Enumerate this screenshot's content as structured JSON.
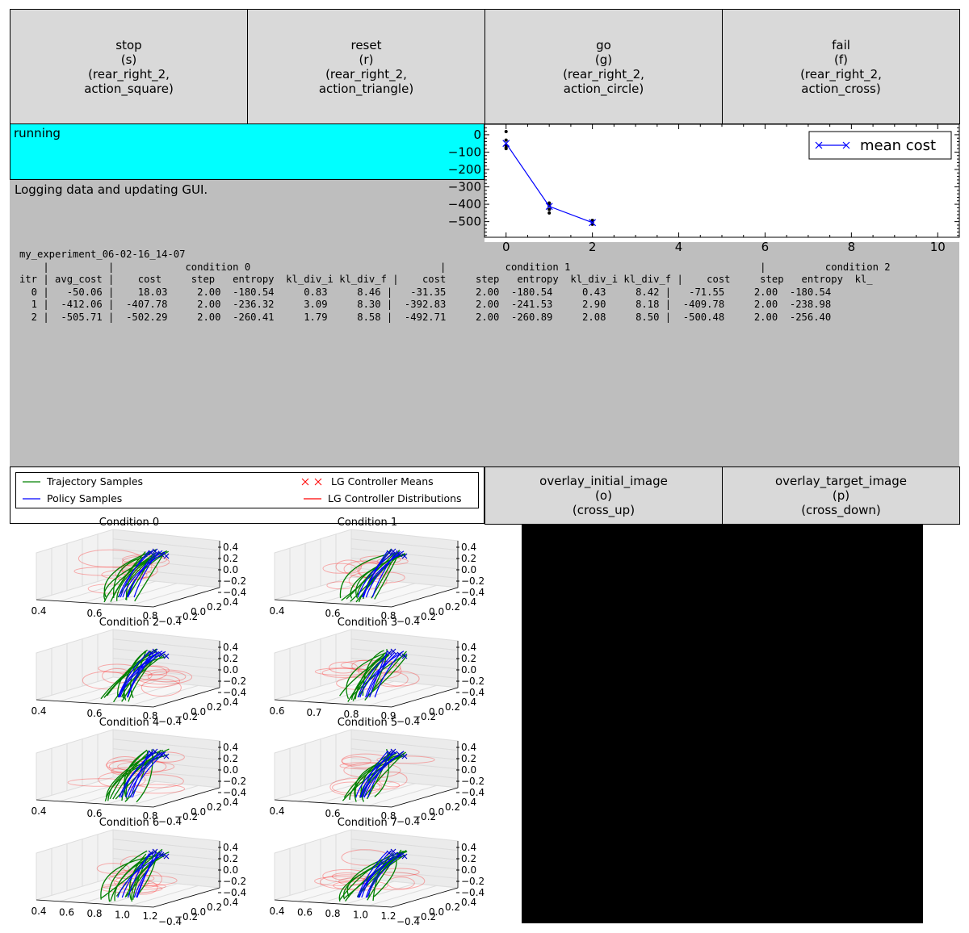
{
  "buttons": [
    {
      "name": "stop-button",
      "lines": [
        "stop",
        "(s)",
        "(rear_right_2,",
        "action_square)"
      ]
    },
    {
      "name": "reset-button",
      "lines": [
        "reset",
        "(r)",
        "(rear_right_2,",
        "action_triangle)"
      ]
    },
    {
      "name": "go-button",
      "lines": [
        "go",
        "(g)",
        "(rear_right_2,",
        "action_circle)"
      ]
    },
    {
      "name": "fail-button",
      "lines": [
        "fail",
        "(f)",
        "(rear_right_2,",
        "action_cross)"
      ]
    }
  ],
  "status": {
    "text": "running",
    "color": "#00ffff"
  },
  "info": {
    "text": "Logging data and updating GUI."
  },
  "log": {
    "lines": [
      "my_experiment_06-02-16_14-07",
      "    |          |            condition 0                                |          condition 1                                |          condition 2",
      "itr | avg_cost |    cost     step   entropy  kl_div_i kl_div_f |    cost     step   entropy  kl_div_i kl_div_f |    cost     step   entropy  kl_",
      "  0 |   -50.06 |    18.03     2.00  -180.54     0.83     8.46 |   -31.35     2.00  -180.54     0.43     8.42 |   -71.55     2.00  -180.54",
      "  1 |  -412.06 |  -407.78     2.00  -236.32     3.09     8.30 |  -392.83     2.00  -241.53     2.90     8.18 |  -409.78     2.00  -238.98",
      "  2 |  -505.71 |  -502.29     2.00  -260.41     1.79     8.58 |  -492.71     2.00  -260.89     2.08     8.50 |  -500.48     2.00  -256.40"
    ]
  },
  "chart_data": {
    "type": "line",
    "legend": "mean cost",
    "legend_position": "top-right",
    "x": [
      0,
      1,
      2
    ],
    "y": [
      -50.06,
      -412.06,
      -505.71
    ],
    "sample_points": [
      [
        0,
        18.03
      ],
      [
        0,
        -31.35
      ],
      [
        0,
        -71.55
      ],
      [
        0,
        -60
      ],
      [
        0,
        -80
      ],
      [
        1,
        -392.83
      ],
      [
        1,
        -407.78
      ],
      [
        1,
        -409.78
      ],
      [
        1,
        -430
      ],
      [
        1,
        -450
      ],
      [
        2,
        -492.71
      ],
      [
        2,
        -502.29
      ],
      [
        2,
        -500.48
      ],
      [
        2,
        -515
      ]
    ],
    "xlim": [
      -0.5,
      10.5
    ],
    "ylim": [
      -590,
      60
    ],
    "xticks": [
      "0",
      "2",
      "4",
      "6",
      "8",
      "10"
    ],
    "yticks": [
      "0",
      "−100",
      "−200",
      "−300",
      "−400",
      "−500"
    ],
    "line_color": "#0000ff"
  },
  "legend": {
    "items": [
      {
        "label": "Trajectory Samples",
        "color": "#008000",
        "kind": "line"
      },
      {
        "label": "Policy Samples",
        "color": "#0000ff",
        "kind": "line"
      },
      {
        "label": "LG Controller Means",
        "color": "#ff0000",
        "kind": "x"
      },
      {
        "label": "LG Controller Distributions",
        "color": "#ff0000",
        "kind": "line"
      }
    ]
  },
  "overlay_buttons": [
    {
      "name": "overlay-initial-image-button",
      "lines": [
        "overlay_initial_image",
        "(o)",
        "(cross_up)"
      ]
    },
    {
      "name": "overlay-target-image-button",
      "lines": [
        "overlay_target_image",
        "(p)",
        "(cross_down)"
      ]
    }
  ],
  "plots3d": [
    {
      "title": "Condition 0",
      "xticks": [
        "0.4",
        "0.6",
        "0.8"
      ]
    },
    {
      "title": "Condition 1",
      "xticks": [
        "0.4",
        "0.6",
        "0.8"
      ]
    },
    {
      "title": "Condition 2",
      "xticks": [
        "0.4",
        "0.6",
        "0.8"
      ]
    },
    {
      "title": "Condition 3",
      "xticks": [
        "0.6",
        "0.7",
        "0.8",
        "0.9"
      ]
    },
    {
      "title": "Condition 4",
      "xticks": [
        "0.4",
        "0.6",
        "0.8"
      ]
    },
    {
      "title": "Condition 5",
      "xticks": [
        "0.4",
        "0.6",
        "0.8"
      ]
    },
    {
      "title": "Condition 6",
      "xticks": [
        "0.4",
        "0.6",
        "0.8",
        "1.0",
        "1.2"
      ]
    },
    {
      "title": "Condition 7",
      "xticks": [
        "0.4",
        "0.6",
        "0.8",
        "1.0",
        "1.2"
      ]
    }
  ],
  "plot3d_zticks": [
    "0.4",
    "0.2",
    "0.0",
    "−0.2",
    "−0.4"
  ],
  "plot3d_yticks": [
    "−0.4",
    "−0.2",
    "0.0",
    "0.2",
    "0.4"
  ],
  "colors": {
    "trajectory": "#008000",
    "policy": "#0000ff",
    "controller": "#ff0000",
    "panel_gray": "#bebebe",
    "button_gray": "#d9d9d9"
  }
}
